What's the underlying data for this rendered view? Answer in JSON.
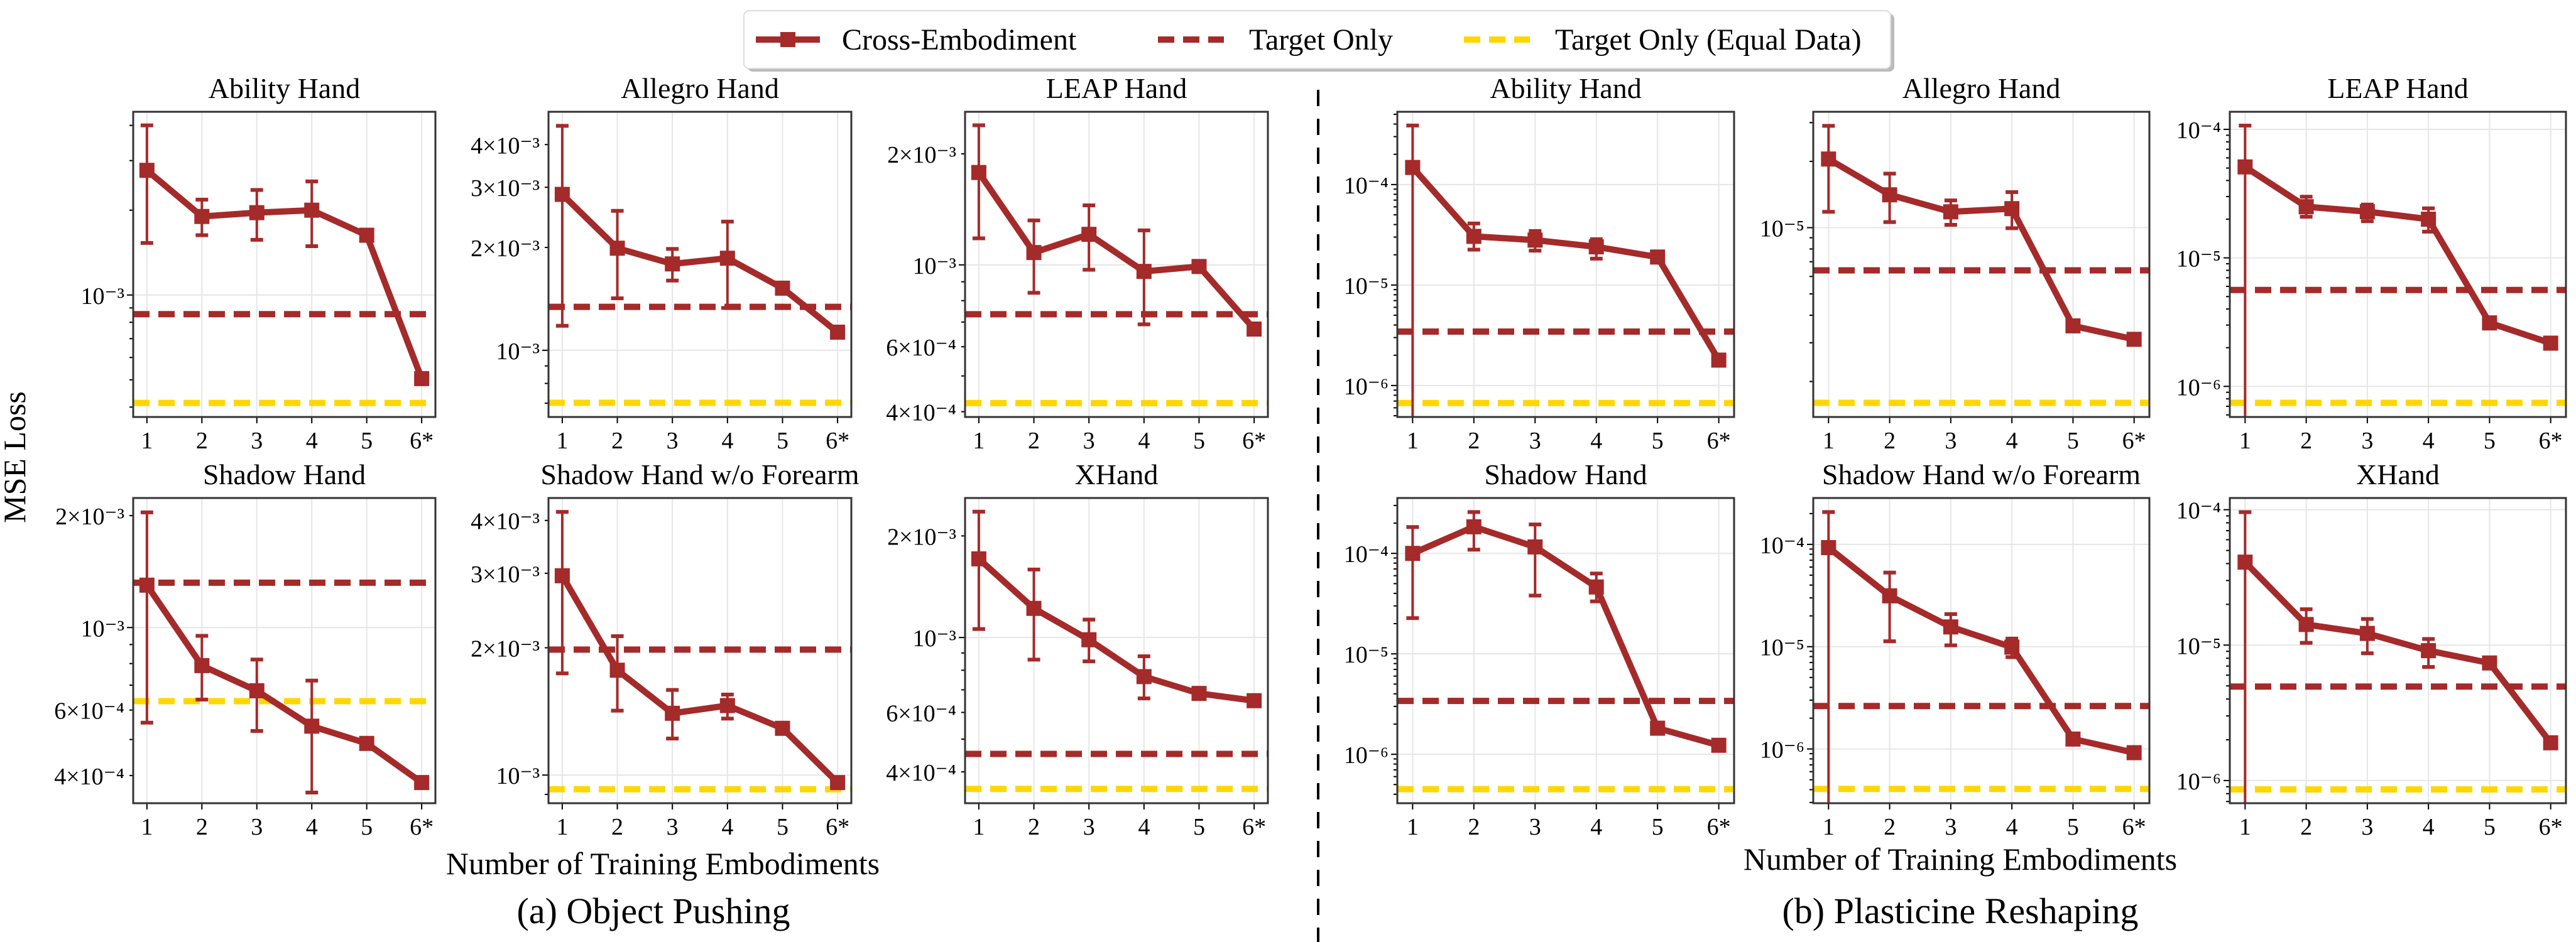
{
  "legend": {
    "placement": "top-center",
    "entries": [
      {
        "label": "Cross-Embodiment",
        "style": "solid-line-square-marker",
        "color": "#A52A2A"
      },
      {
        "label": "Target Only",
        "style": "dashed",
        "color": "#A52A2A"
      },
      {
        "label": "Target Only (Equal Data)",
        "style": "dashed",
        "color": "#FFD700"
      }
    ]
  },
  "ylabel": "MSE Loss",
  "groups": [
    {
      "xlabel": "Number of Training Embodiments",
      "caption": "(a) Object Pushing"
    },
    {
      "xlabel": "Number of Training Embodiments",
      "caption": "(b) Plasticine Reshaping"
    }
  ],
  "colors": {
    "cross": "#A52A2A",
    "target": "#A52A2A",
    "equal": "#FFD700",
    "grid": "#E6E6E6"
  },
  "chart_data": [
    {
      "type": "line",
      "group": 0,
      "title": "Ability Hand",
      "yscale": "log",
      "ylim": [
        0.000369,
        0.00447
      ],
      "x": [
        "1",
        "2",
        "3",
        "4",
        "5",
        "6*"
      ],
      "yticks": [
        {
          "value": 0.001,
          "label": "10⁻³"
        }
      ],
      "series": [
        {
          "name": "Cross-Embodiment",
          "values": [
            0.00277,
            0.0019,
            0.00196,
            0.002,
            0.00163,
            0.000505
          ],
          "err_high": [
            0.004,
            0.00218,
            0.00236,
            0.00253,
            null,
            null
          ],
          "err_low": [
            0.00153,
            0.00163,
            0.00157,
            0.00149,
            null,
            null
          ]
        }
      ],
      "target_only": 0.000855,
      "target_only_equal": 0.000414
    },
    {
      "type": "line",
      "group": 0,
      "title": "Allegro Hand",
      "yscale": "log",
      "ylim": [
        0.000638,
        0.00499
      ],
      "x": [
        "1",
        "2",
        "3",
        "4",
        "5",
        "6*"
      ],
      "yticks": [
        {
          "value": 0.004,
          "label": "4×10⁻³"
        },
        {
          "value": 0.003,
          "label": "3×10⁻³"
        },
        {
          "value": 0.002,
          "label": "2×10⁻³"
        },
        {
          "value": 0.001,
          "label": "10⁻³"
        }
      ],
      "series": [
        {
          "name": "Cross-Embodiment",
          "values": [
            0.00286,
            0.00199,
            0.00179,
            0.00186,
            0.00152,
            0.00113
          ],
          "err_high": [
            0.00454,
            0.00256,
            0.00198,
            0.00238,
            null,
            null
          ],
          "err_low": [
            0.00118,
            0.00142,
            0.0016,
            0.00133,
            null,
            null
          ]
        }
      ],
      "target_only": 0.00134,
      "target_only_equal": 0.000702
    },
    {
      "type": "line",
      "group": 0,
      "title": "LEAP Hand",
      "yscale": "log",
      "ylim": [
        0.000387,
        0.0026
      ],
      "x": [
        "1",
        "2",
        "3",
        "4",
        "5",
        "6*"
      ],
      "yticks": [
        {
          "value": 0.002,
          "label": "2×10⁻³"
        },
        {
          "value": 0.001,
          "label": "10⁻³"
        },
        {
          "value": 0.0006,
          "label": "6×10⁻⁴"
        },
        {
          "value": 0.0004,
          "label": "4×10⁻⁴"
        }
      ],
      "series": [
        {
          "name": "Cross-Embodiment",
          "values": [
            0.00178,
            0.00108,
            0.00121,
            0.00096,
            0.00099,
            0.00067
          ],
          "err_high": [
            0.00239,
            0.00132,
            0.00145,
            0.00124,
            null,
            null
          ],
          "err_low": [
            0.00118,
            0.00084,
            0.00097,
            0.00069,
            null,
            null
          ]
        }
      ],
      "target_only": 0.000735,
      "target_only_equal": 0.000422
    },
    {
      "type": "line",
      "group": 0,
      "title": "Shadow Hand",
      "yscale": "log",
      "ylim": [
        0.000337,
        0.00223
      ],
      "x": [
        "1",
        "2",
        "3",
        "4",
        "5",
        "6*"
      ],
      "yticks": [
        {
          "value": 0.002,
          "label": "2×10⁻³"
        },
        {
          "value": 0.001,
          "label": "10⁻³"
        },
        {
          "value": 0.0006,
          "label": "6×10⁻⁴"
        },
        {
          "value": 0.0004,
          "label": "4×10⁻⁴"
        }
      ],
      "series": [
        {
          "name": "Cross-Embodiment",
          "values": [
            0.0013,
            0.00079,
            0.000676,
            0.000543,
            0.000488,
            0.000383
          ],
          "err_high": [
            0.00204,
            0.00095,
            0.00082,
            0.00072,
            null,
            null
          ],
          "err_low": [
            0.000555,
            0.00064,
            0.000527,
            0.00036,
            null,
            null
          ]
        }
      ],
      "target_only": 0.00132,
      "target_only_equal": 0.000634
    },
    {
      "type": "line",
      "group": 0,
      "title": "Shadow Hand w/o Forearm",
      "yscale": "log",
      "ylim": [
        0.000858,
        0.00452
      ],
      "x": [
        "1",
        "2",
        "3",
        "4",
        "5",
        "6*"
      ],
      "yticks": [
        {
          "value": 0.004,
          "label": "4×10⁻³"
        },
        {
          "value": 0.003,
          "label": "3×10⁻³"
        },
        {
          "value": 0.002,
          "label": "2×10⁻³"
        },
        {
          "value": 0.001,
          "label": "10⁻³"
        }
      ],
      "series": [
        {
          "name": "Cross-Embodiment",
          "values": [
            0.00296,
            0.00177,
            0.0014,
            0.00146,
            0.00129,
            0.00096
          ],
          "err_high": [
            0.00419,
            0.00213,
            0.00159,
            0.00155,
            null,
            null
          ],
          "err_low": [
            0.00174,
            0.00142,
            0.00122,
            0.00136,
            null,
            null
          ]
        }
      ],
      "target_only": 0.00198,
      "target_only_equal": 0.000926
    },
    {
      "type": "line",
      "group": 0,
      "title": "XHand",
      "yscale": "log",
      "ylim": [
        0.000323,
        0.00259
      ],
      "x": [
        "1",
        "2",
        "3",
        "4",
        "5",
        "6*"
      ],
      "yticks": [
        {
          "value": 0.002,
          "label": "2×10⁻³"
        },
        {
          "value": 0.001,
          "label": "10⁻³"
        },
        {
          "value": 0.0006,
          "label": "6×10⁻⁴"
        },
        {
          "value": 0.0004,
          "label": "4×10⁻⁴"
        }
      ],
      "series": [
        {
          "name": "Cross-Embodiment",
          "values": [
            0.00171,
            0.00122,
            0.000985,
            0.000766,
            0.000683,
            0.00065
          ],
          "err_high": [
            0.00236,
            0.00159,
            0.00113,
            0.00088,
            null,
            null
          ],
          "err_low": [
            0.00106,
            0.00086,
            0.00085,
            0.00066,
            null,
            null
          ]
        }
      ],
      "target_only": 0.000452,
      "target_only_equal": 0.000356
    },
    {
      "type": "line",
      "group": 1,
      "title": "Ability Hand",
      "yscale": "log",
      "ylim": [
        4.86e-07,
        0.00053
      ],
      "x": [
        "1",
        "2",
        "3",
        "4",
        "5",
        "6*"
      ],
      "yticks": [
        {
          "value": 0.0001,
          "label": "10⁻⁴"
        },
        {
          "value": 1e-05,
          "label": "10⁻⁵"
        },
        {
          "value": 1e-06,
          "label": "10⁻⁶"
        }
      ],
      "series": [
        {
          "name": "Cross-Embodiment",
          "values": [
            0.000148,
            3.05e-05,
            2.8e-05,
            2.4e-05,
            1.9e-05,
            1.79e-06
          ],
          "err_high": [
            0.000387,
            4.1e-05,
            3.45e-05,
            2.86e-05,
            null,
            null
          ],
          "err_low": [
            "below-axis",
            2.25e-05,
            2.2e-05,
            1.83e-05,
            null,
            null
          ]
        }
      ],
      "target_only": 3.44e-06,
      "target_only_equal": 6.7e-07
    },
    {
      "type": "line",
      "group": 1,
      "title": "Allegro Hand",
      "yscale": "log",
      "ylim": [
        1.38e-06,
        3.36e-05
      ],
      "x": [
        "1",
        "2",
        "3",
        "4",
        "5",
        "6*"
      ],
      "yticks": [
        {
          "value": 1e-05,
          "label": "10⁻⁵"
        }
      ],
      "series": [
        {
          "name": "Cross-Embodiment",
          "values": [
            2.05e-05,
            1.41e-05,
            1.18e-05,
            1.22e-05,
            3.58e-06,
            3.11e-06
          ],
          "err_high": [
            2.9e-05,
            1.76e-05,
            1.33e-05,
            1.45e-05,
            null,
            null
          ],
          "err_low": [
            1.18e-05,
            1.06e-05,
            1.03e-05,
            9.94e-06,
            null,
            null
          ]
        }
      ],
      "target_only": 6.4e-06,
      "target_only_equal": 1.6e-06
    },
    {
      "type": "line",
      "group": 1,
      "title": "LEAP Hand",
      "yscale": "log",
      "ylim": [
        5.78e-07,
        0.000137
      ],
      "x": [
        "1",
        "2",
        "3",
        "4",
        "5",
        "6*"
      ],
      "yticks": [
        {
          "value": 0.0001,
          "label": "10⁻⁴"
        },
        {
          "value": 1e-05,
          "label": "10⁻⁵"
        },
        {
          "value": 1e-06,
          "label": "10⁻⁶"
        }
      ],
      "series": [
        {
          "name": "Cross-Embodiment",
          "values": [
            5.1e-05,
            2.5e-05,
            2.29e-05,
            2e-05,
            3.12e-06,
            2.17e-06
          ],
          "err_high": [
            0.000107,
            2.99e-05,
            2.6e-05,
            2.43e-05,
            null,
            null
          ],
          "err_low": [
            "below-axis",
            2.09e-05,
            1.93e-05,
            1.6e-05,
            null,
            null
          ]
        }
      ],
      "target_only": 5.63e-06,
      "target_only_equal": 7.45e-07
    },
    {
      "type": "line",
      "group": 1,
      "title": "Shadow Hand",
      "yscale": "log",
      "ylim": [
        3.26e-07,
        0.000356
      ],
      "x": [
        "1",
        "2",
        "3",
        "4",
        "5",
        "6*"
      ],
      "yticks": [
        {
          "value": 0.0001,
          "label": "10⁻⁴"
        },
        {
          "value": 1e-05,
          "label": "10⁻⁵"
        },
        {
          "value": 1e-06,
          "label": "10⁻⁶"
        }
      ],
      "series": [
        {
          "name": "Cross-Embodiment",
          "values": [
            0.0001,
            0.000184,
            0.000116,
            4.63e-05,
            1.82e-06,
            1.23e-06
          ],
          "err_high": [
            0.000183,
            0.000258,
            0.000194,
            6.3e-05,
            null,
            null
          ],
          "err_low": [
            2.27e-05,
            0.000109,
            3.8e-05,
            3.33e-05,
            null,
            null
          ]
        }
      ],
      "target_only": 3.4e-06,
      "target_only_equal": 4.5e-07
    },
    {
      "type": "line",
      "group": 1,
      "title": "Shadow Hand w/o Forearm",
      "yscale": "log",
      "ylim": [
        2.95e-07,
        0.000284
      ],
      "x": [
        "1",
        "2",
        "3",
        "4",
        "5",
        "6*"
      ],
      "yticks": [
        {
          "value": 0.0001,
          "label": "10⁻⁴"
        },
        {
          "value": 1e-05,
          "label": "10⁻⁵"
        },
        {
          "value": 1e-06,
          "label": "10⁻⁶"
        }
      ],
      "series": [
        {
          "name": "Cross-Embodiment",
          "values": [
            9.3e-05,
            3.14e-05,
            1.56e-05,
            9.9e-06,
            1.25e-06,
            9.2e-07
          ],
          "err_high": [
            0.000207,
            5.3e-05,
            2.08e-05,
            1.2e-05,
            null,
            null
          ],
          "err_low": [
            "below-axis",
            1.13e-05,
            1.03e-05,
            7.9e-06,
            null,
            null
          ]
        }
      ],
      "target_only": 2.63e-06,
      "target_only_equal": 4.07e-07
    },
    {
      "type": "line",
      "group": 1,
      "title": "XHand",
      "yscale": "log",
      "ylim": [
        6.8e-07,
        0.000122
      ],
      "x": [
        "1",
        "2",
        "3",
        "4",
        "5",
        "6*"
      ],
      "yticks": [
        {
          "value": 0.0001,
          "label": "10⁻⁴"
        },
        {
          "value": 1e-05,
          "label": "10⁻⁵"
        },
        {
          "value": 1e-06,
          "label": "10⁻⁶"
        }
      ],
      "series": [
        {
          "name": "Cross-Embodiment",
          "values": [
            4.1e-05,
            1.42e-05,
            1.22e-05,
            9.1e-06,
            7.38e-06,
            1.9e-06
          ],
          "err_high": [
            9.6e-05,
            1.84e-05,
            1.56e-05,
            1.11e-05,
            null,
            null
          ],
          "err_low": [
            "below-axis",
            1.04e-05,
            8.7e-06,
            6.9e-06,
            null,
            null
          ]
        }
      ],
      "target_only": 4.94e-06,
      "target_only_equal": 8.6e-07
    }
  ]
}
